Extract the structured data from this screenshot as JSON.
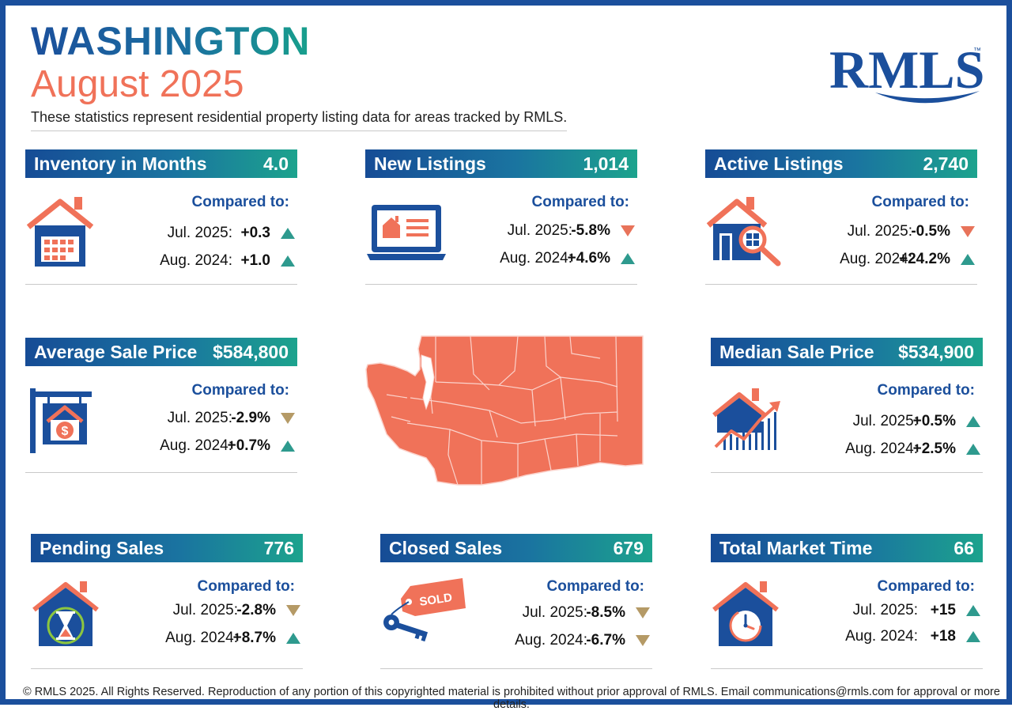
{
  "header": {
    "title": "WASHINGTON",
    "period": "August 2025",
    "subtitle": "These statistics represent residential property listing data for areas tracked by RMLS.",
    "logo_text": "RMLS",
    "logo_tm": "™"
  },
  "colors": {
    "brand_blue": "#1b4f9c",
    "accent_coral": "#f07259",
    "up_teal": "#2e9a8e",
    "down_coral": "#e8735a"
  },
  "cards": [
    {
      "title": "Inventory in Months",
      "value": "4.0",
      "compared": "Compared to:",
      "icon": "house-calendar-icon",
      "rows": [
        {
          "label": "Jul. 2025:",
          "value": "+0.3",
          "dir": "up"
        },
        {
          "label": "Aug. 2024:",
          "value": "+1.0",
          "dir": "up"
        }
      ]
    },
    {
      "title": "New Listings",
      "value": "1,014",
      "compared": "Compared to:",
      "icon": "laptop-listing-icon",
      "rows": [
        {
          "label": "Jul. 2025:",
          "value": "-5.8%",
          "dir": "down"
        },
        {
          "label": "Aug. 2024:",
          "value": "+4.6%",
          "dir": "up"
        }
      ]
    },
    {
      "title": "Active Listings",
      "value": "2,740",
      "compared": "Compared to:",
      "icon": "house-magnifier-icon",
      "rows": [
        {
          "label": "Jul. 2025:",
          "value": "-0.5%",
          "dir": "down"
        },
        {
          "label": "Aug. 2024:",
          "value": "+24.2%",
          "dir": "up"
        }
      ]
    },
    {
      "title": "Average Sale Price",
      "value": "$584,800",
      "compared": "Compared to:",
      "icon": "sale-sign-icon",
      "rows": [
        {
          "label": "Jul. 2025:",
          "value": "-2.9%",
          "dir": "down"
        },
        {
          "label": "Aug. 2024:",
          "value": "+0.7%",
          "dir": "up"
        }
      ]
    },
    {
      "title": "Median Sale Price",
      "value": "$534,900",
      "compared": "Compared to:",
      "icon": "house-growth-chart-icon",
      "rows": [
        {
          "label": "Jul. 2025:",
          "value": "+0.5%",
          "dir": "up"
        },
        {
          "label": "Aug. 2024:",
          "value": "+2.5%",
          "dir": "up"
        }
      ]
    },
    {
      "title": "Pending Sales",
      "value": "776",
      "compared": "Compared to:",
      "icon": "house-hourglass-icon",
      "rows": [
        {
          "label": "Jul. 2025:",
          "value": "-2.8%",
          "dir": "down"
        },
        {
          "label": "Aug. 2024:",
          "value": "+8.7%",
          "dir": "up"
        }
      ]
    },
    {
      "title": "Closed Sales",
      "value": "679",
      "compared": "Compared to:",
      "icon": "sold-tag-keys-icon",
      "tag_text": "SOLD",
      "rows": [
        {
          "label": "Jul. 2025:",
          "value": "-8.5%",
          "dir": "down"
        },
        {
          "label": "Aug. 2024:",
          "value": "-6.7%",
          "dir": "down"
        }
      ]
    },
    {
      "title": "Total Market Time",
      "value": "66",
      "compared": "Compared to:",
      "icon": "house-clock-icon",
      "rows": [
        {
          "label": "Jul. 2025:",
          "value": "+15",
          "dir": "up"
        },
        {
          "label": "Aug. 2024:",
          "value": "+18",
          "dir": "up"
        }
      ]
    }
  ],
  "map": {
    "icon": "washington-county-map-icon"
  },
  "footer": "© RMLS 2025. All Rights Reserved. Reproduction of any portion of this copyrighted material is prohibited without prior approval of RMLS. Email communications@rmls.com for approval or more details."
}
